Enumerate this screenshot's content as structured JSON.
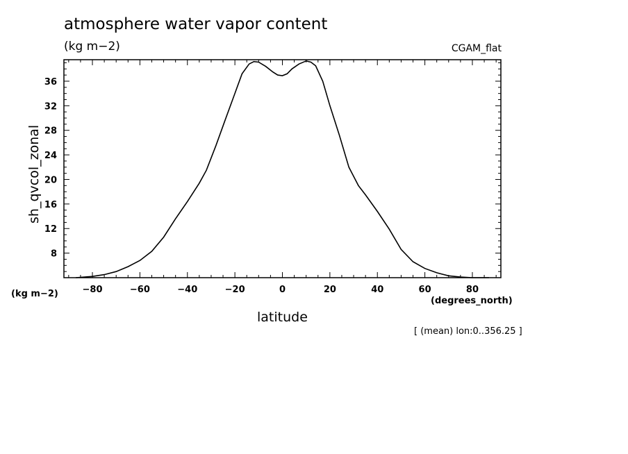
{
  "header": {
    "title": "atmosphere water vapor content",
    "units": "(kg m−2)",
    "dataset": "CGAM_flat"
  },
  "axes": {
    "y_units_label": "(kg m−2)",
    "x_units_label": "(degrees_north)",
    "footnote": "[ (mean) lon:0..356.25 ]"
  },
  "chart_data": {
    "type": "line",
    "title": "atmosphere water vapor content",
    "xlabel": "latitude",
    "ylabel": "sh_qvcol_zonal",
    "xlim": [
      -92,
      92
    ],
    "ylim": [
      4,
      39.5
    ],
    "xticks": [
      -80,
      -60,
      -40,
      -20,
      0,
      20,
      40,
      60,
      80
    ],
    "xtick_labels": [
      "−80",
      "−60",
      "−40",
      "−20",
      "0",
      "20",
      "40",
      "60",
      "80"
    ],
    "yticks": [
      8,
      12,
      16,
      20,
      24,
      28,
      32,
      36
    ],
    "ytick_labels": [
      "8",
      "12",
      "16",
      "20",
      "24",
      "28",
      "32",
      "36"
    ],
    "grid": false,
    "series": [
      {
        "x": [
          -87,
          -80,
          -75,
          -70,
          -65,
          -60,
          -55,
          -50,
          -45,
          -40,
          -35,
          -32,
          -28,
          -24,
          -20,
          -17,
          -14,
          -12,
          -10,
          -7,
          -4,
          -2,
          0,
          2,
          4,
          7,
          10,
          12,
          14,
          17,
          20,
          24,
          28,
          32,
          35,
          40,
          45,
          50,
          55,
          60,
          65,
          70,
          75,
          80,
          87
        ],
        "y": [
          4.0,
          4.2,
          4.5,
          5.0,
          5.8,
          6.8,
          8.3,
          10.6,
          13.6,
          16.4,
          19.4,
          21.5,
          25.5,
          29.8,
          34.0,
          37.2,
          38.8,
          39.2,
          39.1,
          38.4,
          37.5,
          37.0,
          36.9,
          37.2,
          38.0,
          38.8,
          39.3,
          39.1,
          38.5,
          36.0,
          32.0,
          27.2,
          22.0,
          19.0,
          17.5,
          14.8,
          11.9,
          8.6,
          6.6,
          5.5,
          4.8,
          4.3,
          4.1,
          4.0,
          4.0
        ]
      }
    ]
  }
}
